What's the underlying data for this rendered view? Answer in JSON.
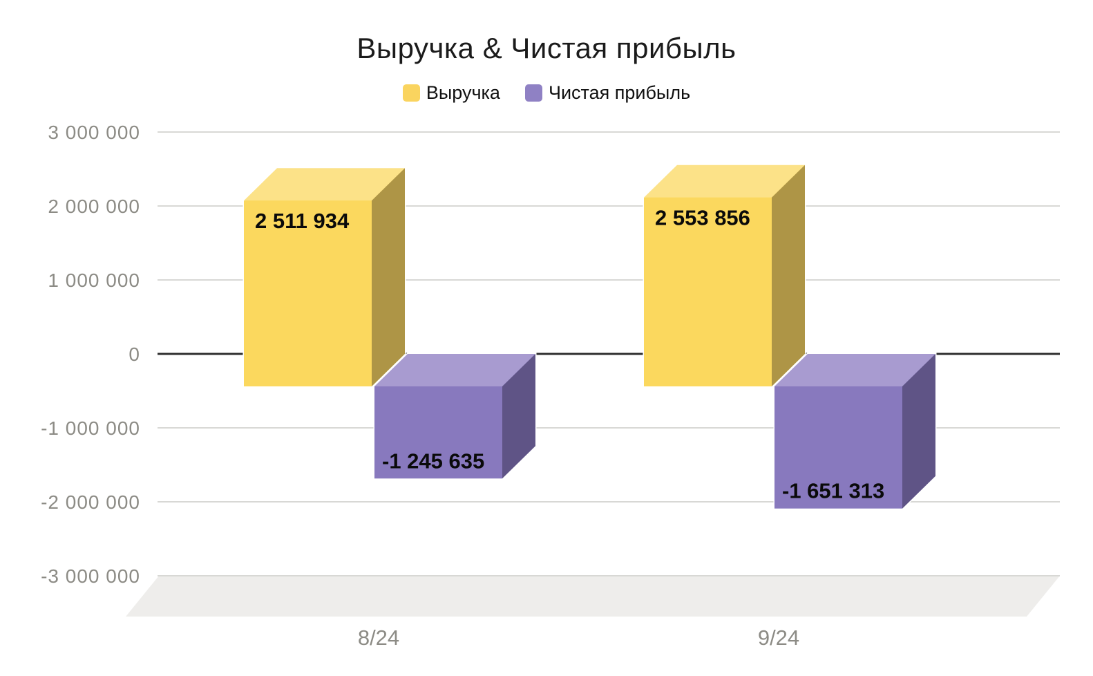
{
  "title": "Выручка & Чистая прибыль",
  "legend": {
    "items": [
      {
        "label": "Выручка",
        "color": "#FAD45F"
      },
      {
        "label": "Чистая прибыль",
        "color": "#8F81C4"
      }
    ]
  },
  "chart_data": {
    "type": "bar",
    "subtype": "3d-column",
    "title": "Выручка & Чистая прибыль",
    "categories": [
      "8/24",
      "9/24"
    ],
    "series": [
      {
        "name": "Выручка",
        "values": [
          2511934,
          2553856
        ],
        "data_labels": [
          "2 511 934",
          "2 553 856"
        ],
        "color_front": "#FBD85E",
        "color_top": "#FCE288",
        "color_side": "#AE9546"
      },
      {
        "name": "Чистая прибыль",
        "values": [
          -1245635,
          -1651313
        ],
        "data_labels": [
          "-1 245 635",
          "-1 651 313"
        ],
        "color_front": "#8879BE",
        "color_top": "#A89BD0",
        "color_side": "#5F5486"
      }
    ],
    "ylim": [
      -3000000,
      3000000
    ],
    "ytick_step": 1000000,
    "yticks": {
      "values": [
        3000000,
        2000000,
        1000000,
        0,
        -1000000,
        -2000000,
        -3000000
      ],
      "labels": [
        "3 000 000",
        "2 000 000",
        "1 000 000",
        "0",
        "-1 000 000",
        "-2 000 000",
        "-3 000 000"
      ]
    },
    "grid": true,
    "legend_position": "top"
  },
  "colors": {
    "background": "#FFFFFF",
    "grid": "#D8D8D5",
    "zero_line": "#2E2E2E",
    "axis_text": "#8C8B85",
    "floor": "#EEEDEB",
    "label_text": "#0A0A0A",
    "title_text": "#1B1B1B"
  }
}
